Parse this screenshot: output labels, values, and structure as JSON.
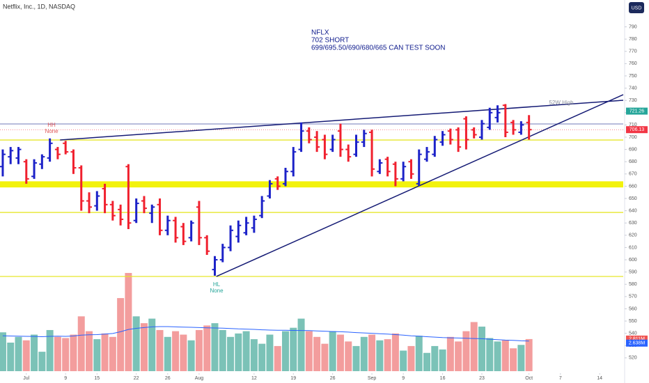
{
  "chart_data": {
    "type": "ohlc",
    "title": "Netflix, Inc., 1D, NASDAQ",
    "currency": "USD",
    "x": [
      0,
      1,
      2,
      3,
      4,
      5,
      6,
      7,
      8,
      9,
      10,
      11,
      12,
      13,
      14,
      15,
      16,
      17,
      18,
      19,
      20,
      21,
      22,
      23,
      24,
      25,
      26,
      27,
      28,
      29,
      30,
      31,
      32,
      33,
      34,
      35,
      36,
      37,
      38,
      39,
      40,
      41,
      42,
      43,
      44,
      45,
      46,
      47,
      48,
      49,
      50,
      51,
      52,
      53,
      54,
      55,
      56,
      57,
      58,
      59,
      60,
      61,
      62,
      63,
      64,
      65,
      66,
      67
    ],
    "xlim": [
      -0.35,
      79
    ],
    "xticks": [
      {
        "value": 3,
        "label": "Jul"
      },
      {
        "value": 8,
        "label": "9"
      },
      {
        "value": 12,
        "label": "15"
      },
      {
        "value": 17,
        "label": "22"
      },
      {
        "value": 21,
        "label": "26"
      },
      {
        "value": 25,
        "label": "Aug"
      },
      {
        "value": 32,
        "label": "12"
      },
      {
        "value": 37,
        "label": "19"
      },
      {
        "value": 42,
        "label": "26"
      },
      {
        "value": 47,
        "label": "Sep"
      },
      {
        "value": 51,
        "label": "9"
      },
      {
        "value": 56,
        "label": "16"
      },
      {
        "value": 61,
        "label": "23"
      },
      {
        "value": 67,
        "label": "Oct"
      },
      {
        "value": 71,
        "label": "7"
      },
      {
        "value": 76,
        "label": "14"
      }
    ],
    "ylim": [
      509.7,
      811.9
    ],
    "yticks": [
      520,
      530,
      540,
      550,
      560,
      570,
      580,
      590,
      600,
      610,
      620,
      630,
      640,
      650,
      660,
      670,
      680,
      690,
      700,
      710,
      720,
      730,
      740,
      750,
      760,
      770,
      780,
      790
    ],
    "up_color": "#1c22c8",
    "down_color": "#f0202e",
    "ohlc": [
      [
        676,
        690,
        668,
        686
      ],
      [
        684,
        692,
        678,
        689
      ],
      [
        683,
        692,
        678,
        690
      ],
      [
        680,
        682,
        662,
        666
      ],
      [
        668,
        682,
        666,
        679
      ],
      [
        678,
        686,
        674,
        684
      ],
      [
        683,
        699,
        680,
        695
      ],
      [
        690,
        692,
        682,
        686
      ],
      [
        695,
        697,
        686,
        688
      ],
      [
        688,
        690,
        670,
        675
      ],
      [
        675,
        677,
        640,
        648
      ],
      [
        648,
        655,
        638,
        643
      ],
      [
        644,
        656,
        640,
        652
      ],
      [
        658,
        662,
        638,
        645
      ],
      [
        645,
        648,
        632,
        636
      ],
      [
        641,
        645,
        628,
        633
      ],
      [
        676,
        678,
        625,
        630
      ],
      [
        632,
        650,
        630,
        646
      ],
      [
        648,
        652,
        638,
        642
      ],
      [
        638,
        645,
        630,
        643
      ],
      [
        645,
        650,
        620,
        624
      ],
      [
        624,
        636,
        620,
        632
      ],
      [
        632,
        635,
        614,
        618
      ],
      [
        627,
        630,
        612,
        615
      ],
      [
        618,
        632,
        615,
        630
      ],
      [
        643,
        648,
        612,
        618
      ],
      [
        618,
        620,
        604,
        607
      ],
      [
        592,
        603,
        587,
        600
      ],
      [
        600,
        613,
        598,
        610
      ],
      [
        610,
        628,
        607,
        624
      ],
      [
        619,
        632,
        614,
        628
      ],
      [
        622,
        635,
        620,
        630
      ],
      [
        626,
        636,
        622,
        633
      ],
      [
        636,
        652,
        634,
        648
      ],
      [
        652,
        665,
        650,
        662
      ],
      [
        666,
        668,
        657,
        660
      ],
      [
        662,
        675,
        660,
        672
      ],
      [
        672,
        692,
        668,
        688
      ],
      [
        690,
        712,
        688,
        705
      ],
      [
        705,
        708,
        695,
        698
      ],
      [
        700,
        705,
        688,
        692
      ],
      [
        698,
        702,
        682,
        686
      ],
      [
        690,
        702,
        688,
        698
      ],
      [
        705,
        711,
        684,
        690
      ],
      [
        690,
        694,
        680,
        684
      ],
      [
        686,
        702,
        684,
        696
      ],
      [
        696,
        706,
        692,
        703
      ],
      [
        704,
        706,
        668,
        674
      ],
      [
        672,
        682,
        670,
        679
      ],
      [
        682,
        684,
        668,
        672
      ],
      [
        678,
        680,
        660,
        666
      ],
      [
        666,
        680,
        664,
        676
      ],
      [
        680,
        682,
        666,
        670
      ],
      [
        662,
        690,
        660,
        686
      ],
      [
        682,
        692,
        680,
        688
      ],
      [
        686,
        701,
        684,
        698
      ],
      [
        696,
        705,
        693,
        702
      ],
      [
        705,
        707,
        694,
        698
      ],
      [
        706,
        708,
        688,
        692
      ],
      [
        715,
        717,
        690,
        698
      ],
      [
        706,
        708,
        699,
        702
      ],
      [
        700,
        714,
        698,
        711
      ],
      [
        708,
        724,
        706,
        720
      ],
      [
        716,
        726,
        712,
        720
      ],
      [
        726,
        727,
        700,
        704
      ],
      [
        712,
        714,
        702,
        706
      ],
      [
        704,
        713,
        702,
        710
      ],
      [
        712,
        718,
        698,
        706.13
      ]
    ],
    "vlim": [
      0,
      32.5
    ],
    "volume_up_color": "#4fae9f",
    "volume_down_color": "#ef7c7c",
    "volume": [
      3.4,
      2.5,
      3.0,
      2.7,
      3.2,
      1.7,
      3.6,
      3.0,
      2.9,
      3.2,
      4.8,
      3.5,
      2.8,
      3.3,
      3.0,
      6.4,
      8.6,
      4.8,
      4.2,
      4.6,
      3.6,
      3.0,
      3.5,
      3.2,
      2.7,
      3.6,
      4.0,
      4.2,
      3.6,
      3.0,
      3.3,
      3.5,
      2.8,
      2.4,
      3.2,
      2.2,
      3.5,
      3.8,
      4.6,
      3.5,
      3.0,
      2.4,
      3.5,
      3.2,
      2.6,
      2.2,
      3.0,
      3.2,
      2.7,
      2.8,
      3.3,
      1.8,
      2.2,
      3.1,
      1.6,
      2.2,
      1.9,
      3.0,
      2.6,
      3.5,
      4.3,
      3.9,
      2.9,
      2.6,
      2.7,
      2.0,
      2.3,
      2.811
    ],
    "volume_ma_color": "#2962ff",
    "volume_ma": [
      3.1,
      3.08,
      3.06,
      3.05,
      3.04,
      3.02,
      3.05,
      3.06,
      3.05,
      3.08,
      3.15,
      3.18,
      3.2,
      3.25,
      3.3,
      3.45,
      3.65,
      3.75,
      3.82,
      3.88,
      3.9,
      3.9,
      3.88,
      3.86,
      3.84,
      3.82,
      3.8,
      3.78,
      3.76,
      3.74,
      3.7,
      3.68,
      3.66,
      3.62,
      3.6,
      3.58,
      3.58,
      3.57,
      3.56,
      3.55,
      3.52,
      3.5,
      3.47,
      3.45,
      3.42,
      3.38,
      3.35,
      3.32,
      3.28,
      3.25,
      3.2,
      3.15,
      3.1,
      3.06,
      3.02,
      2.98,
      2.94,
      2.92,
      2.9,
      2.88,
      2.86,
      2.84,
      2.8,
      2.76,
      2.72,
      2.7,
      2.66,
      2.638
    ],
    "volume_labels": [
      {
        "value": 2.811,
        "label": "2.811M",
        "color": "#ef5350"
      },
      {
        "value": 2.638,
        "label": "2.638M",
        "color": "#2962ff"
      }
    ],
    "price_labels": [
      {
        "value": 721.26,
        "label": "721.26",
        "color": "#26a69a"
      },
      {
        "value": 706.13,
        "label": "706.13",
        "color": "#f23645"
      }
    ],
    "zone": {
      "from": 659,
      "to": 664,
      "color": "#f2f20c"
    },
    "levels": [
      {
        "value": 697.7,
        "color": "#e6e62a"
      },
      {
        "value": 638.6,
        "color": "#e6e62a"
      },
      {
        "value": 586.4,
        "color": "#e6e62a"
      },
      {
        "value": 710.8,
        "color": "#8c93c8"
      }
    ],
    "trendlines": [
      {
        "x": [
          7.3,
          79
        ],
        "y": [
          697.7,
          730.1
        ],
        "color": "#141a74"
      },
      {
        "x": [
          27.2,
          79
        ],
        "y": [
          586.4,
          734.7
        ],
        "color": "#141a74"
      }
    ],
    "note": [
      "NFLX",
      "702 SHORT",
      "699/695.50/690/680/665 CAN TEST SOON"
    ],
    "hh_label": [
      "HH",
      "None"
    ],
    "hl_label": [
      "HL",
      "None"
    ],
    "high_label": "52W High"
  }
}
